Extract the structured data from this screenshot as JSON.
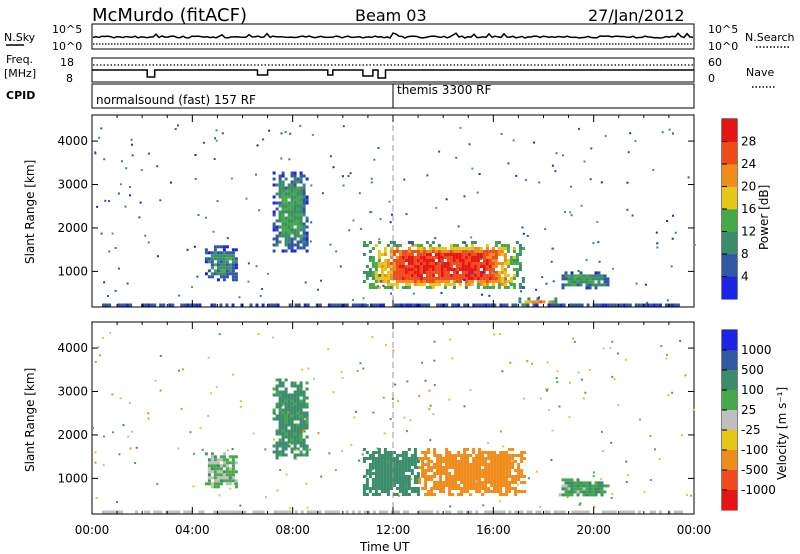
{
  "header": {
    "station": "McMurdo (fitACF)",
    "beam": "Beam 03",
    "date": "27/Jan/2012"
  },
  "top_panels": {
    "nsky_label": "N.Sky",
    "nsearch_label": "N.Search",
    "freq_label_1": "Freq.",
    "freq_label_2": "[MHz]",
    "nave_label": "Nave",
    "cpid_label": "CPID",
    "nsky_ticks": [
      "10^5",
      "10^0"
    ],
    "nsearch_ticks": [
      "10^5",
      "10^0"
    ],
    "freq_ticks": [
      "18",
      "8"
    ],
    "nave_ticks": [
      "60",
      "0"
    ],
    "cpid_1": "normalsound (fast) 157 RF",
    "cpid_2": "themis 3300 RF",
    "cpid_change_hour": 12.0
  },
  "chart_data": [
    {
      "type": "heatmap",
      "ylabel": "Slant Range [km]",
      "xlabel": "Time UT",
      "xlim": [
        0,
        24
      ],
      "ylim": [
        180,
        4600
      ],
      "x_ticks": [
        "00:00",
        "04:00",
        "08:00",
        "12:00",
        "16:00",
        "20:00",
        "00:00"
      ],
      "y_ticks": [
        "1000",
        "2000",
        "3000",
        "4000"
      ],
      "colorbar": {
        "label": "Power [dB]",
        "ticks": [
          "4",
          "8",
          "12",
          "16",
          "20",
          "24",
          "28"
        ],
        "colors": [
          "#1a23e6",
          "#3057a3",
          "#3a8c6a",
          "#47a84a",
          "#e6c619",
          "#f08c1c",
          "#f04a1a",
          "#e61414"
        ]
      },
      "features": [
        {
          "t0": 10.8,
          "t1": 17.2,
          "r0": 600,
          "r1": 1700,
          "level": 28
        },
        {
          "t0": 7.2,
          "t1": 8.6,
          "r0": 1500,
          "r1": 3300,
          "level": 12
        },
        {
          "t0": 4.5,
          "t1": 5.8,
          "r0": 800,
          "r1": 1600,
          "level": 10
        },
        {
          "t0": 17.0,
          "t1": 18.5,
          "r0": 250,
          "r1": 400,
          "level": 22
        },
        {
          "t0": 18.6,
          "t1": 20.6,
          "r0": 650,
          "r1": 1000,
          "level": 12
        }
      ]
    },
    {
      "type": "heatmap",
      "ylabel": "Slant Range [km]",
      "xlabel": "Time UT",
      "xlim": [
        0,
        24
      ],
      "ylim": [
        180,
        4600
      ],
      "x_ticks": [
        "00:00",
        "04:00",
        "08:00",
        "12:00",
        "16:00",
        "20:00",
        "00:00"
      ],
      "y_ticks": [
        "1000",
        "2000",
        "3000",
        "4000"
      ],
      "colorbar": {
        "label": "Velocity [m s⁻¹]",
        "ticks": [
          "1000",
          "500",
          "100",
          "25",
          "-25",
          "-100",
          "-500",
          "-1000"
        ],
        "colors": [
          "#1a23e6",
          "#3057a3",
          "#3a8c6a",
          "#47a84a",
          "#bfbfbf",
          "#e6c619",
          "#f08c1c",
          "#f04a1a",
          "#e61414"
        ]
      },
      "features": [
        {
          "t0": 10.8,
          "t1": 13.0,
          "r0": 600,
          "r1": 1700,
          "level": 200
        },
        {
          "t0": 13.0,
          "t1": 17.2,
          "r0": 600,
          "r1": 1700,
          "level": -200
        },
        {
          "t0": 7.2,
          "t1": 8.6,
          "r0": 1500,
          "r1": 3300,
          "level": 150
        },
        {
          "t0": 4.5,
          "t1": 5.8,
          "r0": 800,
          "r1": 1600,
          "level": 50
        },
        {
          "t0": 18.6,
          "t1": 20.6,
          "r0": 650,
          "r1": 1000,
          "level": 80
        }
      ]
    }
  ]
}
